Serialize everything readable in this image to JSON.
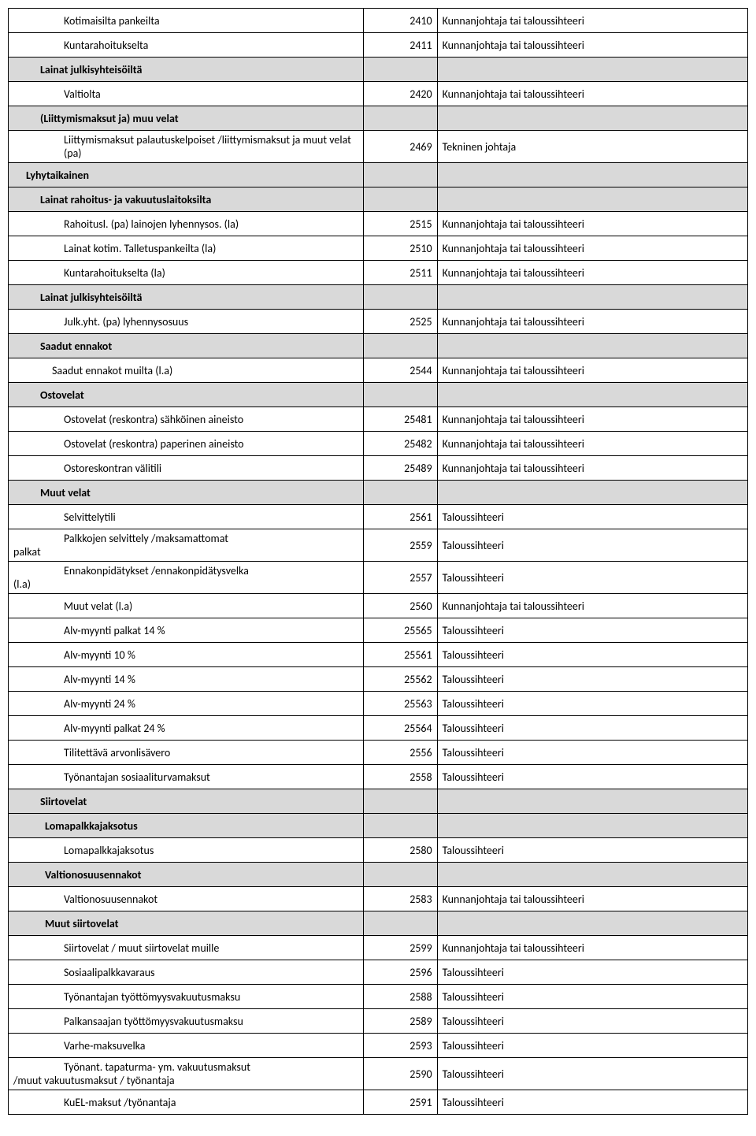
{
  "table": {
    "colors": {
      "shaded_bg": "#d9d9d9",
      "border": "#000000"
    },
    "rows": [
      {
        "c1": "Kotimaisilta pankeilta",
        "c2": "2410",
        "c3": "Kunnanjohtaja tai taloussihteeri",
        "indent": 2
      },
      {
        "c1": "Kuntarahoitukselta",
        "c2": "2411",
        "c3": "Kunnanjohtaja tai taloussihteeri",
        "indent": 2
      },
      {
        "c1": "Lainat julkisyhteisöiltä",
        "c2": "",
        "c3": "",
        "indent": 1,
        "bold": true,
        "shaded": true
      },
      {
        "c1": "Valtiolta",
        "c2": "2420",
        "c3": "Kunnanjohtaja tai taloussihteeri",
        "indent": 2
      },
      {
        "c1": "(Liittymismaksut ja) muu velat",
        "c2": "",
        "c3": "",
        "indent": 1,
        "bold": true,
        "shaded": true
      },
      {
        "c1": "Liittymismaksut palautuskelpoiset /liittymismaksut ja muut velat (pa)",
        "c2": "2469",
        "c3": "Tekninen johtaja",
        "indent": 2
      },
      {
        "c1": "Lyhytaikainen",
        "c2": "",
        "c3": "",
        "indent": 0,
        "bold": true,
        "shaded": true
      },
      {
        "c1": "Lainat rahoitus- ja vakuutuslaitoksilta",
        "c2": "",
        "c3": "",
        "indent": 1,
        "bold": true,
        "shaded": true
      },
      {
        "c1": "Rahoitusl. (pa) lainojen lyhennysos. (la)",
        "c2": "2515",
        "c3": "Kunnanjohtaja tai taloussihteeri",
        "indent": 2
      },
      {
        "c1": "Lainat kotim. Talletuspankeilta (la)",
        "c2": "2510",
        "c3": "Kunnanjohtaja tai taloussihteeri",
        "indent": 2
      },
      {
        "c1": "Kuntarahoitukselta     (la)",
        "c2": "2511",
        "c3": "Kunnanjohtaja tai taloussihteeri",
        "indent": 2
      },
      {
        "c1": "Lainat julkisyhteisöiltä",
        "c2": "",
        "c3": "",
        "indent": 1,
        "bold": true,
        "shaded": true
      },
      {
        "c1": "Julk.yht. (pa) lyhennysosuus",
        "c2": "2525",
        "c3": "Kunnanjohtaja tai taloussihteeri",
        "indent": 2
      },
      {
        "c1": "Saadut ennakot",
        "c2": "",
        "c3": "",
        "indent": 1,
        "bold": true,
        "shaded": true
      },
      {
        "c1": " Saadut ennakot muilta (l.a)",
        "c2": "2544",
        "c3": "Kunnanjohtaja tai taloussihteeri",
        "indent": 3
      },
      {
        "c1": "Ostovelat",
        "c2": "",
        "c3": "",
        "indent": 1,
        "bold": true,
        "shaded": true
      },
      {
        "c1": "Ostovelat (reskontra) sähköinen aineisto",
        "c2": "25481",
        "c3": "Kunnanjohtaja tai taloussihteeri",
        "indent": 2
      },
      {
        "c1": "Ostovelat (reskontra) paperinen aineisto",
        "c2": "25482",
        "c3": "Kunnanjohtaja tai taloussihteeri",
        "indent": 2
      },
      {
        "c1": "Ostoreskontran välitili",
        "c2": "25489",
        "c3": "Kunnanjohtaja tai taloussihteeri",
        "indent": 2
      },
      {
        "c1": "Muut velat",
        "c2": "",
        "c3": "",
        "indent": 1,
        "bold": true,
        "shaded": true
      },
      {
        "c1": "Selvittelytili",
        "c2": "2561",
        "c3": "Taloussihteeri",
        "indent": 2
      },
      {
        "c1": "Palkkojen selvittely /maksamattomat palkat",
        "c2": "2559",
        "c3": "Taloussihteeri",
        "indent": 2,
        "wrap": "palkat"
      },
      {
        "c1": "Ennakonpidätykset /ennakonpidätysvelka (l.a)",
        "c2": "2557",
        "c3": "Taloussihteeri",
        "indent": 2,
        "wrap": "(l.a)"
      },
      {
        "c1": "Muut velat (l.a)",
        "c2": "2560",
        "c3": "Kunnanjohtaja tai taloussihteeri",
        "indent": 2
      },
      {
        "c1": "Alv-myynti palkat 14 %",
        "c2": "25565",
        "c3": "Taloussihteeri",
        "indent": 2
      },
      {
        "c1": "Alv-myynti 10 %",
        "c2": "25561",
        "c3": "Taloussihteeri",
        "indent": 2
      },
      {
        "c1": "Alv-myynti 14 %",
        "c2": "25562",
        "c3": "Taloussihteeri",
        "indent": 2
      },
      {
        "c1": "Alv-myynti 24 %",
        "c2": "25563",
        "c3": "Taloussihteeri",
        "indent": 2
      },
      {
        "c1": "Alv-myynti palkat 24 %",
        "c2": "25564",
        "c3": "Taloussihteeri",
        "indent": 2
      },
      {
        "c1": "Tilitettävä arvonlisävero",
        "c2": "2556",
        "c3": "Taloussihteeri",
        "indent": 2
      },
      {
        "c1": "Työnantajan sosiaaliturvamaksut",
        "c2": "2558",
        "c3": "Taloussihteeri",
        "indent": 2
      },
      {
        "c1": "Siirtovelat",
        "c2": "",
        "c3": "",
        "indent": 1,
        "bold": true,
        "shaded": true
      },
      {
        "c1": "Lomapalkkajaksotus",
        "c2": "",
        "c3": "",
        "indent": 1,
        "bold": true,
        "shaded": true,
        "pad": 46
      },
      {
        "c1": "Lomapalkkajaksotus",
        "c2": "2580",
        "c3": "Taloussihteeri",
        "indent": 2
      },
      {
        "c1": "Valtionosuusennakot",
        "c2": "",
        "c3": "",
        "indent": 1,
        "bold": true,
        "shaded": true,
        "pad": 46
      },
      {
        "c1": "Valtionosuusennakot",
        "c2": "2583",
        "c3": "Kunnanjohtaja tai taloussihteeri",
        "indent": 2
      },
      {
        "c1": "Muut siirtovelat",
        "c2": "",
        "c3": "",
        "indent": 1,
        "bold": true,
        "shaded": true,
        "pad": 46
      },
      {
        "c1": "Siirtovelat / muut siirtovelat muille",
        "c2": "2599",
        "c3": "Kunnanjohtaja tai taloussihteeri",
        "indent": 2
      },
      {
        "c1": "Sosiaalipalkkavaraus",
        "c2": "2596",
        "c3": "Taloussihteeri",
        "indent": 2
      },
      {
        "c1": "Työnantajan työttömyysvakuutusmaksu",
        "c2": "2588",
        "c3": "Taloussihteeri",
        "indent": 2
      },
      {
        "c1": "Palkansaajan työttömyysvakuutusmaksu",
        "c2": "2589",
        "c3": "Taloussihteeri",
        "indent": 2
      },
      {
        "c1": "Varhe-maksuvelka",
        "c2": "2593",
        "c3": "Taloussihteeri",
        "indent": 2
      },
      {
        "c1": "Työnant. tapaturma- ym. vakuutusmaksut /muut vakuutusmaksut / työnantaja",
        "c2": "2590",
        "c3": "Taloussihteeri",
        "indent": 2,
        "wrap": "/muut vakuutusmaksut / työnantaja"
      },
      {
        "c1": "KuEL-maksut /työnantaja",
        "c2": "2591",
        "c3": "Taloussihteeri",
        "indent": 2
      }
    ]
  }
}
